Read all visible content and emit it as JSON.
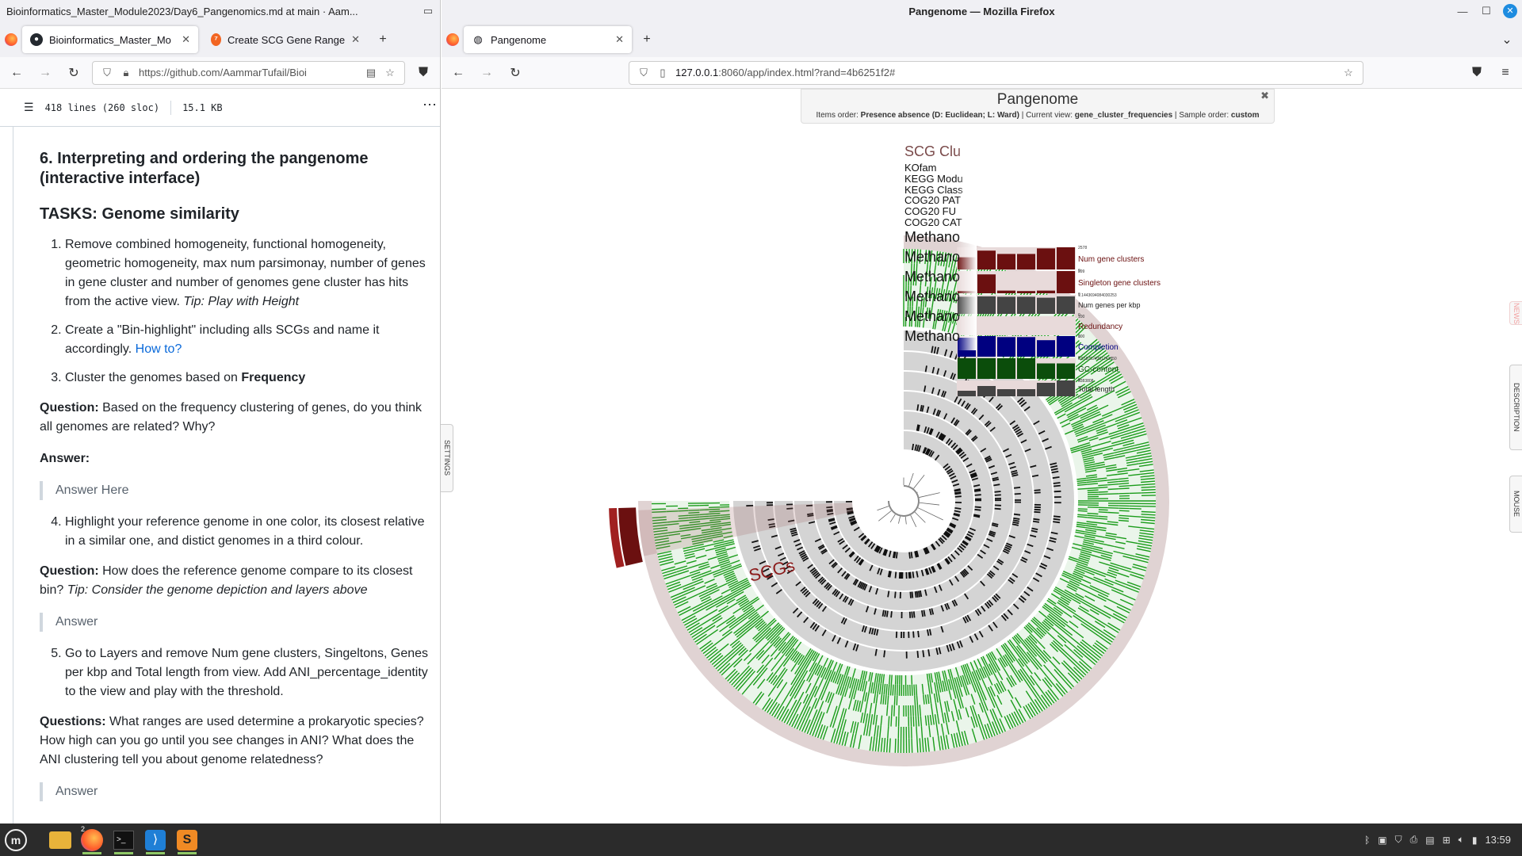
{
  "left_window": {
    "title": "Bioinformatics_Master_Module2023/Day6_Pangenomics.md at main · Aam...",
    "tabs": [
      {
        "label": "Bioinformatics_Master_Mo",
        "active": true
      },
      {
        "label": "Create SCG Gene Range",
        "active": false
      }
    ],
    "url": "https://github.com/AammarTufail/Bioi",
    "file_info": {
      "lines": "418 lines (260 sloc)",
      "size": "15.1 KB"
    },
    "content": {
      "heading": "6. Interpreting and ordering the pangenome (interactive interface)",
      "tasks_heading": "TASKS: Genome similarity",
      "task1": "Remove combined homogeneity, functional homogeneity, geometric homogeneity, max num parsimonay, number of genes in gene cluster and number of genomes gene cluster has hits from the active view.",
      "task1_tip": "Tip: Play with Height",
      "task2": "Create a \"Bin-highlight\" including alls SCGs and name it accordingly.",
      "task2_link": "How to?",
      "task3_pre": "Cluster the genomes based on",
      "task3_bold": "Frequency",
      "q1_label": "Question:",
      "q1_text": "Based on the frequency clustering of genes, do you think all genomes are related? Why?",
      "answer_label": "Answer:",
      "answer_here": "Answer Here",
      "task4": "Highlight your reference genome in one color, its closest relative in a similar one, and distict genomes in a third colour.",
      "q2_label": "Question:",
      "q2_text": "How does the reference genome compare to its closest bin?",
      "q2_tip": "Tip: Consider the genome depiction and layers above",
      "answer2": "Answer",
      "task5": "Go to Layers and remove Num gene clusters, Singeltons, Genes per kbp and Total length from view. Add ANI_percentage_identity to the view and play with the threshold.",
      "q3_label": "Questions:",
      "q3_text": "What ranges are used determine a prokaryotic species? How high can you go until you see changes in ANI? What does the ANI clustering tell you about genome relatedness?",
      "answer3": "Answer"
    }
  },
  "right_window": {
    "title": "Pangenome — Mozilla Firefox",
    "tab": "Pangenome",
    "url_host": "127.0.0.1",
    "url_rest": ":8060/app/index.html?rand=4b6251f2#",
    "settings_tab": "SETTINGS",
    "description_tab": "DESCRIPTION",
    "mouse_tab": "MOUSE",
    "news_tab": "NEWS",
    "header": {
      "title": "Pangenome",
      "items_order_label": "Items order:",
      "items_order": "Presence absence (D: Euclidean; L: Ward)",
      "current_view_label": "Current view:",
      "current_view": "gene_cluster_frequencies",
      "sample_order_label": "Sample order:",
      "sample_order": "custom"
    },
    "layer_labels": [
      "SCG Clu",
      "KOfam",
      "KEGG Modu",
      "KEGG Class",
      "COG20 PAT",
      "COG20 FU",
      "COG20 CAT",
      "Methano",
      "Methano",
      "Methano",
      "Methano",
      "Methano",
      "Methano"
    ],
    "bin_label": "SCGs",
    "colors": {
      "green": "#1a9c1a",
      "dark_red": "#6b1010",
      "grey": "#d4d4d4",
      "pink": "#e0d3d3",
      "navy": "#000080",
      "dark_green": "#0b4d0b",
      "dark_grey": "#444444"
    }
  },
  "chart_data": {
    "type": "bar",
    "categories": [
      "Methano",
      "Methano",
      "Methano",
      "Methano",
      "Methano",
      "Methano"
    ],
    "layers": [
      {
        "name": "Num gene clusters",
        "max_label": "2578",
        "min_label": "0",
        "values": [
          0.55,
          0.85,
          0.7,
          0.7,
          0.95,
          1.0
        ],
        "color": "#6b1010"
      },
      {
        "name": "Singleton gene clusters",
        "max_label": "399",
        "min_label": "0",
        "values": [
          0.1,
          0.85,
          0.12,
          0.1,
          0.12,
          1.0
        ],
        "color": "#6b1010"
      },
      {
        "name": "Num genes per kbp",
        "max_label": "1.1443694084030253",
        "min_label": "0",
        "values": [
          0.9,
          0.92,
          0.9,
          0.9,
          0.85,
          0.92
        ],
        "color": "#444444"
      },
      {
        "name": "Redundancy",
        "max_label": "100",
        "min_label": "0",
        "values": [
          0,
          0,
          0,
          0,
          0,
          0
        ],
        "color": "#6b1010"
      },
      {
        "name": "Completion",
        "max_label": "100",
        "min_label": "0",
        "values": [
          0.92,
          1.0,
          0.95,
          0.95,
          0.8,
          1.0
        ],
        "color": "#000080"
      },
      {
        "name": "GC-content",
        "max_label": "0.5187524301243850",
        "min_label": "0",
        "values": [
          1.0,
          1.0,
          1.0,
          1.0,
          0.75,
          0.75
        ],
        "color": "#0b4d0b"
      },
      {
        "name": "Total length",
        "max_label": "3383808",
        "min_label": "0",
        "values": [
          0.35,
          0.65,
          0.45,
          0.45,
          0.85,
          1.0
        ],
        "color": "#444444"
      }
    ]
  },
  "taskbar": {
    "firefox_badge": "2",
    "clock": "13:59"
  }
}
